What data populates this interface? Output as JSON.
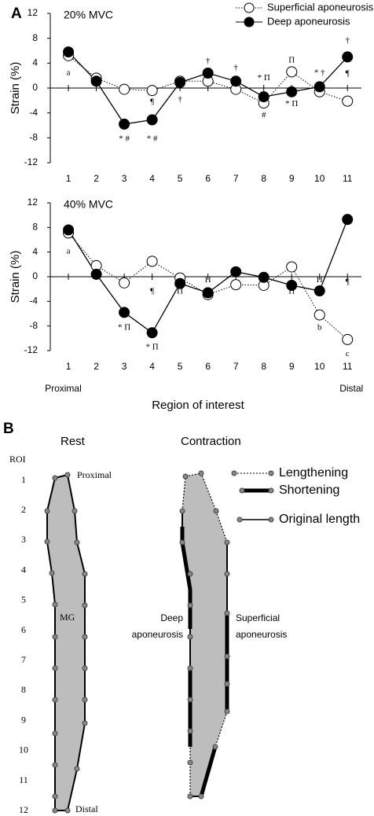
{
  "panel_labels": [
    "A",
    "B"
  ],
  "chart_data": [
    {
      "type": "line",
      "title": "20% MVC",
      "ylabel": "Strain (%)",
      "x": [
        1,
        2,
        3,
        4,
        5,
        6,
        7,
        8,
        9,
        10,
        11
      ],
      "xlim": [
        0.35,
        11.5
      ],
      "xticks": [
        1,
        2,
        3,
        4,
        5,
        6,
        7,
        8,
        9,
        10,
        11
      ],
      "ylim": [
        -12,
        12
      ],
      "yticks": [
        -12,
        -8,
        -4,
        0,
        4,
        8,
        12
      ],
      "show_legend": true,
      "legend": "upper right",
      "series": [
        {
          "name": "Superficial aponeurosis",
          "color": "#000000",
          "marker": "open",
          "line_style": "dotted",
          "values": [
            5.2,
            1.6,
            -0.2,
            -0.4,
            1.1,
            1.1,
            -0.2,
            -2.4,
            2.6,
            -0.6,
            -2.1
          ]
        },
        {
          "name": "Deep aponeurosis",
          "color": "#000000",
          "marker": "filled",
          "line_style": "solid",
          "values": [
            5.8,
            1.1,
            -5.8,
            -5.1,
            0.9,
            2.4,
            1.1,
            -1.4,
            -0.6,
            0.2,
            5.0
          ]
        }
      ],
      "annotations": [
        {
          "text": "a",
          "x": 1,
          "y": 2.4
        },
        {
          "text": "* #",
          "x": 3,
          "y": -8.2
        },
        {
          "text": "* #",
          "x": 4,
          "y": -8.2
        },
        {
          "text": "¶",
          "x": 4,
          "y": -2.3
        },
        {
          "text": "†",
          "x": 5,
          "y": -1.9
        },
        {
          "text": "†",
          "x": 6,
          "y": 4.3
        },
        {
          "text": "†",
          "x": 7,
          "y": 3.2
        },
        {
          "text": "* Π",
          "x": 8,
          "y": 1.6
        },
        {
          "text": "#",
          "x": 8,
          "y": -4.4
        },
        {
          "text": "Π",
          "x": 9,
          "y": 4.4
        },
        {
          "text": "* Π",
          "x": 9,
          "y": -2.6
        },
        {
          "text": "* †",
          "x": 10,
          "y": 2.4
        },
        {
          "text": "†",
          "x": 11,
          "y": 7.6
        },
        {
          "text": "¶",
          "x": 11,
          "y": 2.3
        }
      ]
    },
    {
      "type": "line",
      "title": "40% MVC",
      "ylabel": "Strain (%)",
      "xlabel": "Region of interest",
      "x_end_labels": [
        "Proximal",
        "Distal"
      ],
      "x": [
        1,
        2,
        3,
        4,
        5,
        6,
        7,
        8,
        9,
        10,
        11
      ],
      "xlim": [
        0.35,
        11.5
      ],
      "xticks": [
        1,
        2,
        3,
        4,
        5,
        6,
        7,
        8,
        9,
        10,
        11
      ],
      "ylim": [
        -12,
        12
      ],
      "yticks": [
        -12,
        -8,
        -4,
        0,
        4,
        8,
        12
      ],
      "show_legend": false,
      "series": [
        {
          "name": "Superficial aponeurosis",
          "color": "#000000",
          "marker": "open",
          "line_style": "dotted",
          "values": [
            7.1,
            1.8,
            -1.0,
            2.5,
            -0.2,
            -2.9,
            -1.3,
            -1.4,
            1.6,
            -6.2,
            -10.2
          ]
        },
        {
          "name": "Deep aponeurosis",
          "color": "#000000",
          "marker": "filled",
          "line_style": "solid",
          "values": [
            7.6,
            0.4,
            -5.8,
            -9.1,
            -1.1,
            -2.6,
            0.8,
            -0.1,
            -1.4,
            -2.3,
            9.3
          ]
        }
      ],
      "annotations": [
        {
          "text": "a",
          "x": 1,
          "y": 4.1
        },
        {
          "text": "* Π",
          "x": 3,
          "y": -8.3
        },
        {
          "text": "¶",
          "x": 4,
          "y": -2.4
        },
        {
          "text": "* Π",
          "x": 4,
          "y": -11.5
        },
        {
          "text": "Π",
          "x": 5,
          "y": -2.4
        },
        {
          "text": "Π",
          "x": 6,
          "y": -0.6
        },
        {
          "text": "Π",
          "x": 9,
          "y": -2.4
        },
        {
          "text": "Π",
          "x": 10,
          "y": -0.6
        },
        {
          "text": "b",
          "x": 10,
          "y": -8.3
        },
        {
          "text": "¶",
          "x": 11,
          "y": -0.9
        },
        {
          "text": "c",
          "x": 11,
          "y": -12.6
        }
      ]
    }
  ],
  "diagram": {
    "rest_title": "Rest",
    "contraction_title": "Contraction",
    "roi_header": "ROI",
    "roi_labels": [
      "1",
      "2",
      "3",
      "4",
      "5",
      "6",
      "7",
      "8",
      "9",
      "10",
      "11",
      "12"
    ],
    "rest_labels": {
      "proximal": "Proximal",
      "muscle": "MG",
      "distal": "Distal"
    },
    "deep_label": [
      "Deep",
      "aponeurosis"
    ],
    "superficial_label": [
      "Superficial",
      "aponeurosis"
    ],
    "legend": [
      "Lengthening",
      "Shortening",
      "Original length"
    ]
  }
}
